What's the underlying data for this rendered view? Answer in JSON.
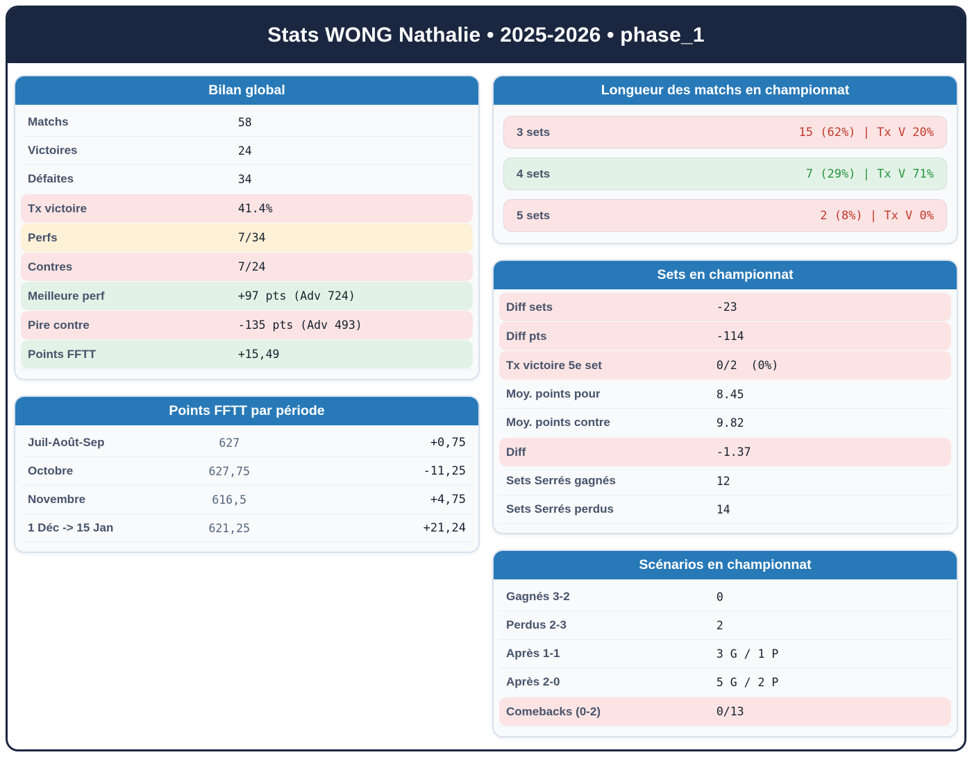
{
  "header": {
    "title": "Stats WONG Nathalie • 2025-2026 • phase_1"
  },
  "colors": {
    "navy": "#1b2640",
    "blue": "#2879b8",
    "pink": "#fce4e4",
    "yellow": "#fdf1d7",
    "green": "#e3f2e6",
    "red-text": "#c0392b",
    "green-text": "#27963f"
  },
  "cards": {
    "bilan": {
      "title": "Bilan global",
      "rows": [
        {
          "label": "Matchs",
          "value": "58"
        },
        {
          "label": "Victoires",
          "value": "24"
        },
        {
          "label": "Défaites",
          "value": "34"
        },
        {
          "label": "Tx victoire",
          "value": "41.4%"
        },
        {
          "label": "Perfs",
          "value": "7/34"
        },
        {
          "label": "Contres",
          "value": "7/24"
        },
        {
          "label": "Meilleure perf",
          "value": "+97 pts (Adv 724)"
        },
        {
          "label": "Pire contre",
          "value": "-135 pts (Adv 493)"
        },
        {
          "label": "Points FFTT",
          "value": "+15,49"
        }
      ]
    },
    "periode": {
      "title": "Points FFTT par période",
      "rows": [
        {
          "label": "Juil-Août-Sep",
          "points": "627",
          "delta": "+0,75"
        },
        {
          "label": "Octobre",
          "points": "627,75",
          "delta": "-11,25"
        },
        {
          "label": "Novembre",
          "points": "616,5",
          "delta": "+4,75"
        },
        {
          "label": "1 Déc -> 15 Jan",
          "points": "621,25",
          "delta": "+21,24"
        }
      ]
    },
    "longueur": {
      "title": "Longueur des matchs en championnat",
      "rows": [
        {
          "label": "3 sets",
          "value": "15 (62%) | Tx V 20%"
        },
        {
          "label": "4 sets",
          "value": "7 (29%) | Tx V 71%"
        },
        {
          "label": "5 sets",
          "value": "2 (8%) | Tx V 0%"
        }
      ]
    },
    "sets": {
      "title": "Sets en championnat",
      "rows": [
        {
          "label": "Diff sets",
          "value": "-23"
        },
        {
          "label": "Diff pts",
          "value": "-114"
        },
        {
          "label": "Tx victoire 5e set",
          "value": "0/2  (0%)"
        },
        {
          "label": "Moy. points pour",
          "value": "8.45"
        },
        {
          "label": "Moy. points contre",
          "value": "9.82"
        },
        {
          "label": "Diff",
          "value": "-1.37"
        },
        {
          "label": "Sets Serrés gagnés",
          "value": "12"
        },
        {
          "label": "Sets Serrés perdus",
          "value": "14"
        }
      ]
    },
    "scenarios": {
      "title": "Scénarios en championnat",
      "rows": [
        {
          "label": "Gagnés 3-2",
          "value": "0"
        },
        {
          "label": "Perdus 2-3",
          "value": "2"
        },
        {
          "label": "Après 1-1",
          "value": "3 G / 1 P"
        },
        {
          "label": "Après 2-0",
          "value": "5 G / 2 P"
        },
        {
          "label": "Comebacks (0-2)",
          "value": "0/13"
        }
      ]
    }
  }
}
